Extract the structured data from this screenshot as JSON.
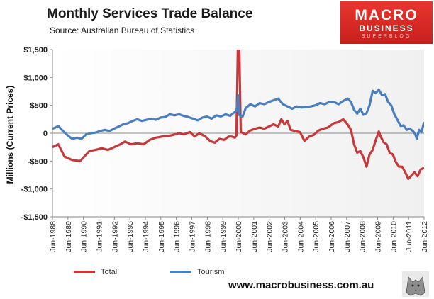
{
  "header": {
    "title": "Monthly  Services  Trade  Balance",
    "source": "Source:  Australian Bureau of Statistics"
  },
  "logo": {
    "line1": "MACRO",
    "line2": "BUSINESS",
    "line3": "SUPERBLOG"
  },
  "footer": {
    "website": "www.macrobusiness.com.au"
  },
  "colors": {
    "total": "#c8383a",
    "tourism": "#4a7ebf",
    "plot_background": "#f0f0f0",
    "logo": "#d42a24"
  },
  "chart_data": {
    "type": "line",
    "title": "Monthly  Services  Trade  Balance",
    "ylabel": "Millions (Current Prices)",
    "xlabel": "",
    "x_range": [
      1988.42,
      2012.42
    ],
    "ylim": [
      -1500,
      1500
    ],
    "yticks": [
      1500,
      1000,
      500,
      0,
      -500,
      -1000,
      -1500
    ],
    "ytick_labels": [
      "$1,500",
      "$1,000",
      "$500",
      "0",
      "-$500",
      "-$1,000",
      "-$1,500"
    ],
    "xtick_labels": [
      "Jun-1988",
      "Jun-1989",
      "Jun-1990",
      "Jun-1991",
      "Jun-1992",
      "Jun-1993",
      "Jun-1994",
      "Jun-1995",
      "Jun-1996",
      "Jun-1997",
      "Jun-1998",
      "Jun-1999",
      "Jun-2000",
      "Jun-2001",
      "Jun-2002",
      "Jun-2003",
      "Jun-2004",
      "Jun-2005",
      "Jun-2006",
      "Jun-2007",
      "Jun-2008",
      "Jun-2009",
      "Jun-2010",
      "Jun-2011",
      "Jun-2012"
    ],
    "legend_position": "bottom",
    "grid": false,
    "series": [
      {
        "name": "Total",
        "color": "#c8383a",
        "points": [
          [
            1988.42,
            -250
          ],
          [
            1988.8,
            -200
          ],
          [
            1989.2,
            -420
          ],
          [
            1989.7,
            -480
          ],
          [
            1990.2,
            -500
          ],
          [
            1990.5,
            -410
          ],
          [
            1990.8,
            -320
          ],
          [
            1991.2,
            -300
          ],
          [
            1991.6,
            -270
          ],
          [
            1992.0,
            -300
          ],
          [
            1992.4,
            -250
          ],
          [
            1992.8,
            -200
          ],
          [
            1993.1,
            -150
          ],
          [
            1993.5,
            -200
          ],
          [
            1993.9,
            -180
          ],
          [
            1994.3,
            -200
          ],
          [
            1994.7,
            -120
          ],
          [
            1995.1,
            -80
          ],
          [
            1995.5,
            -60
          ],
          [
            1995.9,
            -50
          ],
          [
            1996.2,
            -30
          ],
          [
            1996.6,
            0
          ],
          [
            1996.9,
            -20
          ],
          [
            1997.3,
            20
          ],
          [
            1997.6,
            -60
          ],
          [
            1997.9,
            0
          ],
          [
            1998.3,
            -60
          ],
          [
            1998.6,
            -140
          ],
          [
            1998.9,
            -170
          ],
          [
            1999.2,
            -100
          ],
          [
            1999.5,
            -120
          ],
          [
            1999.8,
            -60
          ],
          [
            2000.0,
            -60
          ],
          [
            2000.2,
            -80
          ],
          [
            2000.3,
            -40
          ],
          [
            2000.42,
            2000
          ],
          [
            2000.5,
            1350
          ],
          [
            2000.58,
            20
          ],
          [
            2000.9,
            -20
          ],
          [
            2001.2,
            50
          ],
          [
            2001.5,
            80
          ],
          [
            2001.8,
            100
          ],
          [
            2002.1,
            80
          ],
          [
            2002.4,
            120
          ],
          [
            2002.7,
            160
          ],
          [
            2003.0,
            120
          ],
          [
            2003.2,
            250
          ],
          [
            2003.4,
            160
          ],
          [
            2003.6,
            220
          ],
          [
            2003.8,
            60
          ],
          [
            2004.1,
            40
          ],
          [
            2004.4,
            20
          ],
          [
            2004.7,
            -140
          ],
          [
            2005.0,
            -60
          ],
          [
            2005.3,
            -30
          ],
          [
            2005.6,
            50
          ],
          [
            2005.9,
            80
          ],
          [
            2006.2,
            100
          ],
          [
            2006.6,
            180
          ],
          [
            2006.9,
            200
          ],
          [
            2007.2,
            250
          ],
          [
            2007.5,
            150
          ],
          [
            2007.7,
            60
          ],
          [
            2007.9,
            -200
          ],
          [
            2008.1,
            -350
          ],
          [
            2008.3,
            -320
          ],
          [
            2008.5,
            -430
          ],
          [
            2008.7,
            -600
          ],
          [
            2008.9,
            -380
          ],
          [
            2009.1,
            -300
          ],
          [
            2009.3,
            -120
          ],
          [
            2009.5,
            30
          ],
          [
            2009.6,
            -50
          ],
          [
            2009.8,
            -160
          ],
          [
            2010.0,
            -200
          ],
          [
            2010.2,
            -350
          ],
          [
            2010.4,
            -380
          ],
          [
            2010.6,
            -520
          ],
          [
            2010.8,
            -600
          ],
          [
            2011.0,
            -600
          ],
          [
            2011.2,
            -700
          ],
          [
            2011.4,
            -820
          ],
          [
            2011.6,
            -760
          ],
          [
            2011.8,
            -700
          ],
          [
            2012.0,
            -770
          ],
          [
            2012.2,
            -650
          ],
          [
            2012.42,
            -620
          ]
        ]
      },
      {
        "name": "Tourism",
        "color": "#4a7ebf",
        "points": [
          [
            1988.42,
            80
          ],
          [
            1988.6,
            100
          ],
          [
            1988.8,
            130
          ],
          [
            1989.1,
            40
          ],
          [
            1989.4,
            -40
          ],
          [
            1989.7,
            -100
          ],
          [
            1990.0,
            -80
          ],
          [
            1990.3,
            -100
          ],
          [
            1990.6,
            -20
          ],
          [
            1990.9,
            0
          ],
          [
            1991.2,
            10
          ],
          [
            1991.5,
            40
          ],
          [
            1991.8,
            60
          ],
          [
            1992.1,
            40
          ],
          [
            1992.4,
            80
          ],
          [
            1992.7,
            120
          ],
          [
            1993.0,
            160
          ],
          [
            1993.3,
            180
          ],
          [
            1993.6,
            220
          ],
          [
            1993.9,
            250
          ],
          [
            1994.2,
            220
          ],
          [
            1994.5,
            240
          ],
          [
            1994.8,
            260
          ],
          [
            1995.1,
            240
          ],
          [
            1995.4,
            280
          ],
          [
            1995.7,
            290
          ],
          [
            1996.0,
            340
          ],
          [
            1996.3,
            320
          ],
          [
            1996.6,
            340
          ],
          [
            1996.9,
            310
          ],
          [
            1997.2,
            290
          ],
          [
            1997.5,
            260
          ],
          [
            1997.8,
            230
          ],
          [
            1998.1,
            280
          ],
          [
            1998.4,
            300
          ],
          [
            1998.7,
            260
          ],
          [
            1999.0,
            320
          ],
          [
            1999.3,
            300
          ],
          [
            1999.6,
            340
          ],
          [
            1999.9,
            310
          ],
          [
            2000.1,
            360
          ],
          [
            2000.3,
            400
          ],
          [
            2000.42,
            680
          ],
          [
            2000.5,
            320
          ],
          [
            2000.7,
            300
          ],
          [
            2000.9,
            450
          ],
          [
            2001.2,
            520
          ],
          [
            2001.5,
            480
          ],
          [
            2001.8,
            540
          ],
          [
            2002.1,
            520
          ],
          [
            2002.4,
            560
          ],
          [
            2002.7,
            590
          ],
          [
            2003.0,
            620
          ],
          [
            2003.3,
            520
          ],
          [
            2003.6,
            480
          ],
          [
            2003.9,
            440
          ],
          [
            2004.2,
            480
          ],
          [
            2004.5,
            460
          ],
          [
            2004.8,
            470
          ],
          [
            2005.1,
            480
          ],
          [
            2005.4,
            500
          ],
          [
            2005.7,
            540
          ],
          [
            2006.0,
            520
          ],
          [
            2006.3,
            560
          ],
          [
            2006.6,
            560
          ],
          [
            2006.9,
            520
          ],
          [
            2007.2,
            580
          ],
          [
            2007.5,
            620
          ],
          [
            2007.7,
            560
          ],
          [
            2007.9,
            420
          ],
          [
            2008.1,
            350
          ],
          [
            2008.3,
            440
          ],
          [
            2008.5,
            330
          ],
          [
            2008.7,
            360
          ],
          [
            2008.9,
            500
          ],
          [
            2009.1,
            760
          ],
          [
            2009.3,
            720
          ],
          [
            2009.5,
            780
          ],
          [
            2009.7,
            680
          ],
          [
            2009.9,
            700
          ],
          [
            2010.1,
            560
          ],
          [
            2010.3,
            500
          ],
          [
            2010.5,
            340
          ],
          [
            2010.7,
            240
          ],
          [
            2010.9,
            130
          ],
          [
            2011.1,
            140
          ],
          [
            2011.3,
            60
          ],
          [
            2011.5,
            80
          ],
          [
            2011.7,
            40
          ],
          [
            2011.85,
            -20
          ],
          [
            2011.95,
            -100
          ],
          [
            2012.1,
            60
          ],
          [
            2012.25,
            20
          ],
          [
            2012.42,
            200
          ]
        ]
      }
    ]
  }
}
